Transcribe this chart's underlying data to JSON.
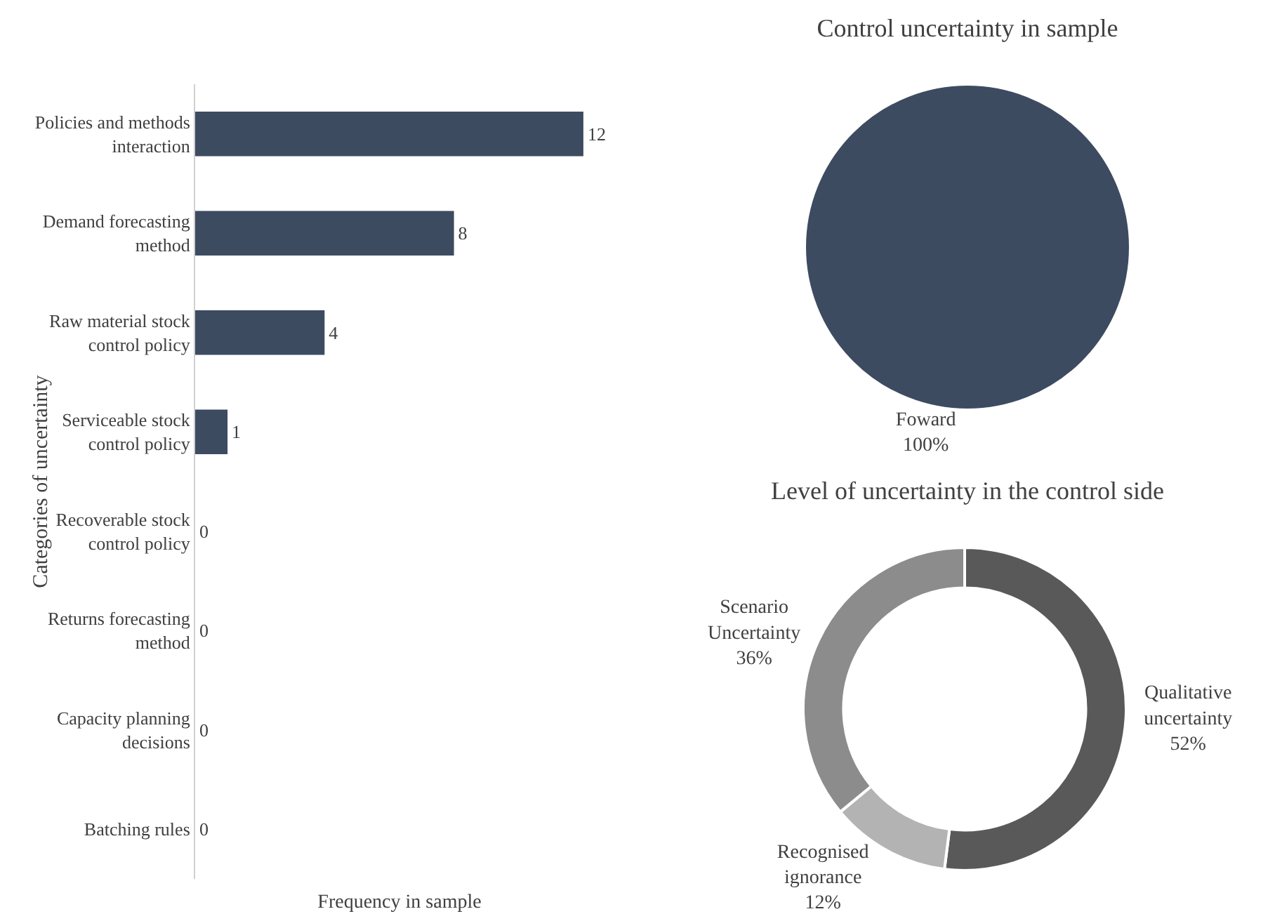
{
  "chart_data": [
    {
      "type": "bar",
      "orientation": "horizontal",
      "categories": [
        "Policies and methods interaction",
        "Demand forecasting method",
        "Raw material stock control policy",
        "Serviceable stock control policy",
        "Recoverable stock control policy",
        "Returns forecasting method",
        "Capacity planning decisions",
        "Batching rules"
      ],
      "values": [
        12,
        8,
        4,
        1,
        0,
        0,
        0,
        0
      ],
      "color": "#3d4b61",
      "data_labels": true,
      "xlabel": "Frequency in sample",
      "ylabel": "Categories of uncertainty",
      "tick_labels": "y",
      "grid": false,
      "legend": false
    },
    {
      "type": "pie",
      "title": "Control uncertainty in sample",
      "categories": [
        "Foward"
      ],
      "values": [
        100
      ],
      "value_labels": [
        "100%"
      ],
      "colors": [
        "#3d4b61"
      ],
      "legend": false
    },
    {
      "type": "donut",
      "title": "Level of uncertainty in the control side",
      "categories": [
        "Qualitative uncertainty",
        "Recognised ignorance",
        "Scenario Uncertainty"
      ],
      "values": [
        52,
        12,
        36
      ],
      "value_labels": [
        "52%",
        "12%",
        "36%"
      ],
      "colors": [
        "#595959",
        "#b3b3b3",
        "#8c8c8c"
      ],
      "legend": false
    }
  ]
}
